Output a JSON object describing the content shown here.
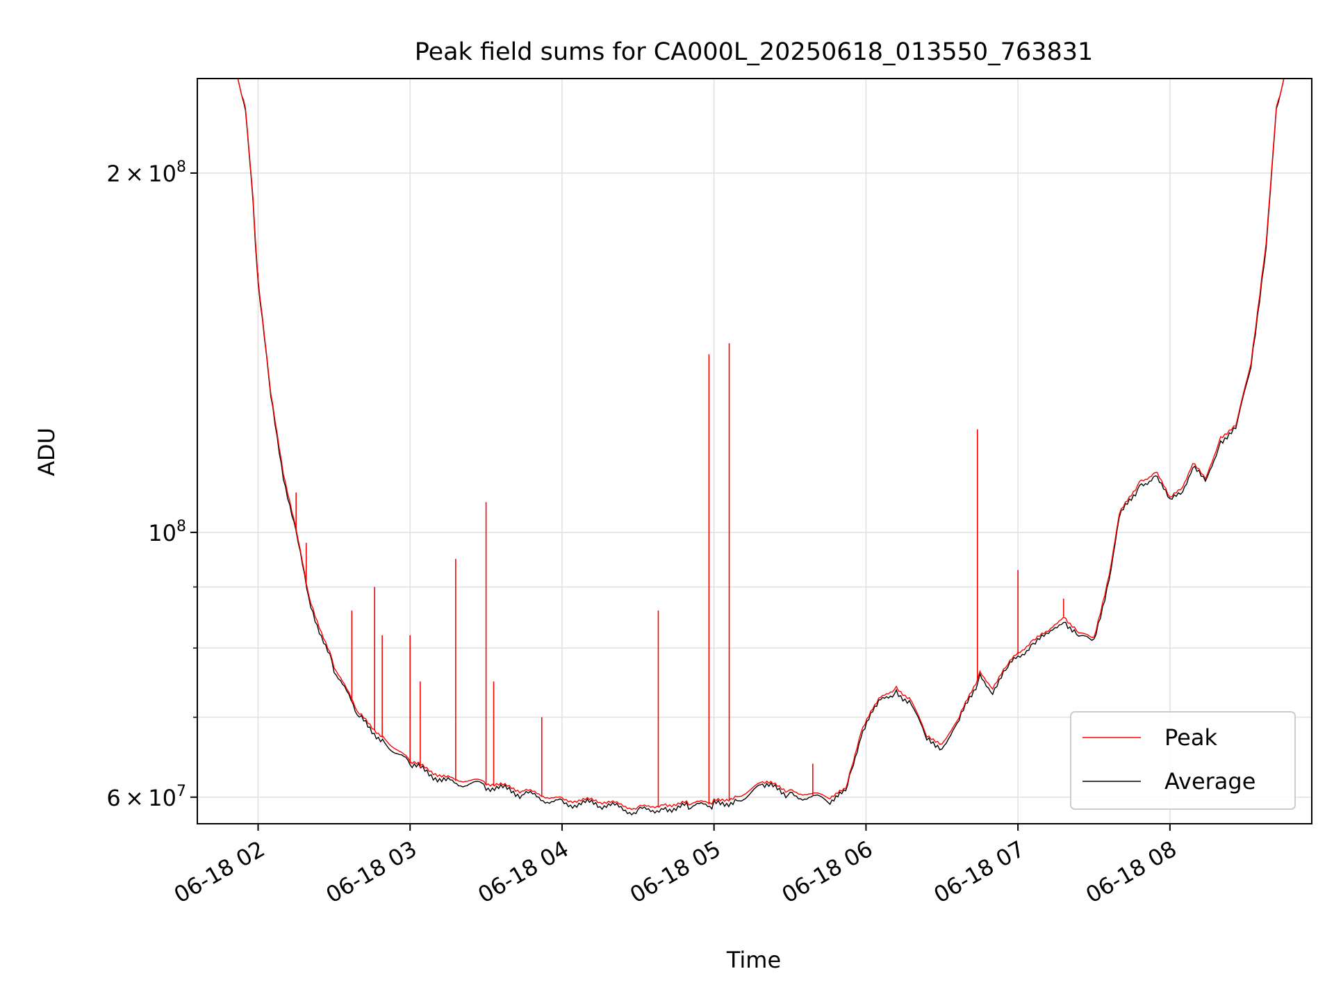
{
  "chart_data": {
    "type": "line",
    "title": "Peak field sums for CA000L_20250618_013550_763831",
    "xlabel": "Time",
    "ylabel": "ADU",
    "yscale": "log",
    "xlim": [
      "2025-06-18 01:36",
      "2025-06-18 08:56"
    ],
    "ylim": [
      57000000,
      240000000
    ],
    "grid": true,
    "x_ticks": [
      {
        "t": "2025-06-18 02:00",
        "label": "06-18 02"
      },
      {
        "t": "2025-06-18 03:00",
        "label": "06-18 03"
      },
      {
        "t": "2025-06-18 04:00",
        "label": "06-18 04"
      },
      {
        "t": "2025-06-18 05:00",
        "label": "06-18 05"
      },
      {
        "t": "2025-06-18 06:00",
        "label": "06-18 06"
      },
      {
        "t": "2025-06-18 07:00",
        "label": "06-18 07"
      },
      {
        "t": "2025-06-18 08:00",
        "label": "06-18 08"
      }
    ],
    "y_ticks_major": [
      {
        "value": 60000000,
        "mantissa": "6",
        "exp": "7"
      },
      {
        "value": 100000000,
        "mantissa": "",
        "exp": "8"
      },
      {
        "value": 200000000,
        "mantissa": "2",
        "exp": "8"
      }
    ],
    "y_ticks_minor": [
      70000000,
      80000000,
      90000000
    ],
    "legend": {
      "position": "lower-right"
    },
    "series": [
      {
        "name": "Average",
        "color": "#000000",
        "points": [
          [
            "2025-06-18 01:36",
            240000000
          ],
          [
            "2025-06-18 01:52",
            240000000
          ],
          [
            "2025-06-18 01:55",
            225000000
          ],
          [
            "2025-06-18 01:58",
            190000000
          ],
          [
            "2025-06-18 02:00",
            162000000
          ],
          [
            "2025-06-18 02:05",
            130000000
          ],
          [
            "2025-06-18 02:10",
            112000000
          ],
          [
            "2025-06-18 02:15",
            100000000
          ],
          [
            "2025-06-18 02:20",
            88000000
          ],
          [
            "2025-06-18 02:30",
            77000000
          ],
          [
            "2025-06-18 02:40",
            70000000
          ],
          [
            "2025-06-18 02:50",
            67000000
          ],
          [
            "2025-06-18 03:00",
            64000000
          ],
          [
            "2025-06-18 03:15",
            62000000
          ],
          [
            "2025-06-18 03:30",
            61500000
          ],
          [
            "2025-06-18 03:45",
            60500000
          ],
          [
            "2025-06-18 04:00",
            59500000
          ],
          [
            "2025-06-18 04:15",
            59300000
          ],
          [
            "2025-06-18 04:30",
            58500000
          ],
          [
            "2025-06-18 04:40",
            59000000
          ],
          [
            "2025-06-18 04:50",
            59000000
          ],
          [
            "2025-06-18 05:00",
            59200000
          ],
          [
            "2025-06-18 05:10",
            60000000
          ],
          [
            "2025-06-18 05:20",
            61500000
          ],
          [
            "2025-06-18 05:30",
            60500000
          ],
          [
            "2025-06-18 05:45",
            59800000
          ],
          [
            "2025-06-18 05:52",
            60500000
          ],
          [
            "2025-06-18 05:55",
            64000000
          ],
          [
            "2025-06-18 05:58",
            68000000
          ],
          [
            "2025-06-18 06:05",
            72000000
          ],
          [
            "2025-06-18 06:12",
            74000000
          ],
          [
            "2025-06-18 06:18",
            72000000
          ],
          [
            "2025-06-18 06:24",
            67000000
          ],
          [
            "2025-06-18 06:30",
            66500000
          ],
          [
            "2025-06-18 06:36",
            69000000
          ],
          [
            "2025-06-18 06:45",
            76000000
          ],
          [
            "2025-06-18 06:50",
            74000000
          ],
          [
            "2025-06-18 06:56",
            77000000
          ],
          [
            "2025-06-18 07:00",
            79000000
          ],
          [
            "2025-06-18 07:06",
            81000000
          ],
          [
            "2025-06-18 07:12",
            82000000
          ],
          [
            "2025-06-18 07:18",
            85000000
          ],
          [
            "2025-06-18 07:24",
            82000000
          ],
          [
            "2025-06-18 07:30",
            81000000
          ],
          [
            "2025-06-18 07:36",
            92000000
          ],
          [
            "2025-06-18 07:40",
            103000000
          ],
          [
            "2025-06-18 07:48",
            110000000
          ],
          [
            "2025-06-18 07:55",
            112000000
          ],
          [
            "2025-06-18 08:00",
            106000000
          ],
          [
            "2025-06-18 08:05",
            109000000
          ],
          [
            "2025-06-18 08:09",
            114000000
          ],
          [
            "2025-06-18 08:14",
            110000000
          ],
          [
            "2025-06-18 08:20",
            120000000
          ],
          [
            "2025-06-18 08:26",
            122000000
          ],
          [
            "2025-06-18 08:32",
            138000000
          ],
          [
            "2025-06-18 08:38",
            175000000
          ],
          [
            "2025-06-18 08:42",
            225000000
          ],
          [
            "2025-06-18 08:45",
            240000000
          ],
          [
            "2025-06-18 08:56",
            240000000
          ]
        ]
      },
      {
        "name": "Peak",
        "color": "#ff0000",
        "spikes": [
          [
            "2025-06-18 02:00",
            165000000
          ],
          [
            "2025-06-18 02:15",
            108000000
          ],
          [
            "2025-06-18 02:19",
            98000000
          ],
          [
            "2025-06-18 02:37",
            86000000
          ],
          [
            "2025-06-18 02:46",
            90000000
          ],
          [
            "2025-06-18 02:49",
            82000000
          ],
          [
            "2025-06-18 03:00",
            82000000
          ],
          [
            "2025-06-18 03:04",
            75000000
          ],
          [
            "2025-06-18 03:18",
            95000000
          ],
          [
            "2025-06-18 03:30",
            106000000
          ],
          [
            "2025-06-18 03:33",
            75000000
          ],
          [
            "2025-06-18 03:52",
            70000000
          ],
          [
            "2025-06-18 04:38",
            86000000
          ],
          [
            "2025-06-18 04:58",
            141000000
          ],
          [
            "2025-06-18 05:06",
            144000000
          ],
          [
            "2025-06-18 05:39",
            64000000
          ],
          [
            "2025-06-18 06:44",
            122000000
          ],
          [
            "2025-06-18 07:00",
            93000000
          ],
          [
            "2025-06-18 07:18",
            88000000
          ]
        ]
      }
    ]
  }
}
